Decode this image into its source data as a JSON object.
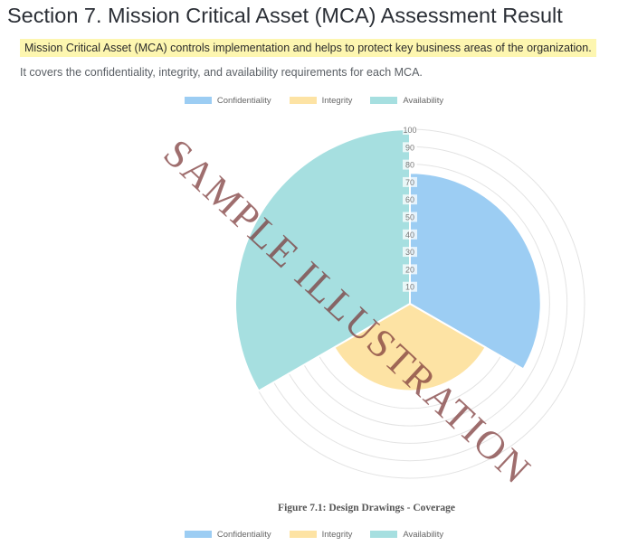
{
  "section": {
    "title": "Section 7. Mission Critical Asset (MCA) Assessment Result",
    "highlight": "Mission Critical Asset (MCA) controls implementation and helps to protect key business areas of the organization.",
    "description": "It covers the confidentiality, integrity, and availability requirements for each MCA."
  },
  "figure": {
    "caption": "Figure 7.1: Design Drawings - Coverage"
  },
  "watermark": {
    "text": "SAMPLE ILLUSTRATION"
  },
  "chart_data": {
    "type": "polarArea",
    "title": "",
    "categories": [
      "Confidentiality",
      "Integrity",
      "Availability"
    ],
    "values": [
      75,
      50,
      100
    ],
    "colors": [
      "#9ccdf3",
      "#fde3a4",
      "#a6dfe0"
    ],
    "r_range": [
      0,
      100
    ],
    "ticks": [
      10,
      20,
      30,
      40,
      50,
      60,
      70,
      80,
      90,
      100
    ],
    "tick_labels": [
      "10",
      "20",
      "30",
      "40",
      "50",
      "60",
      "70",
      "80",
      "90",
      "100"
    ],
    "legend_position": "top and bottom",
    "legend": [
      {
        "label": "Confidentiality",
        "color": "#9ccdf3"
      },
      {
        "label": "Integrity",
        "color": "#fde3a4"
      },
      {
        "label": "Availability",
        "color": "#a6dfe0"
      }
    ]
  }
}
